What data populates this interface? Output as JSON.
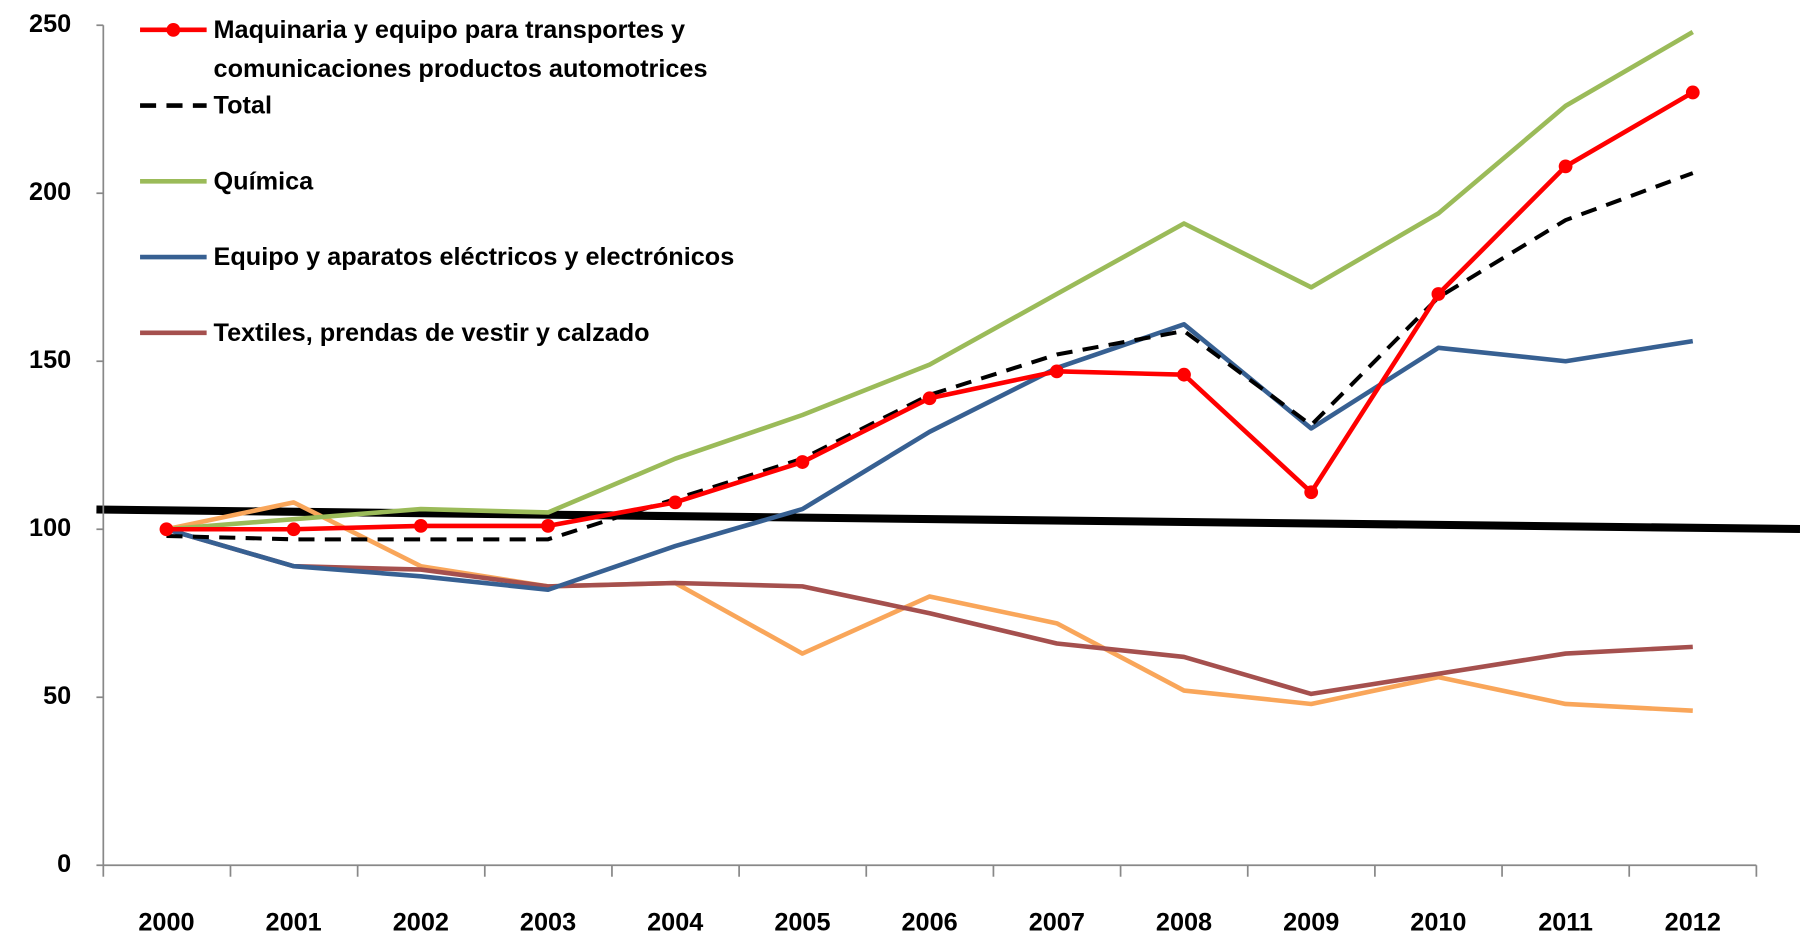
{
  "chart_data": {
    "type": "line",
    "categories": [
      "2000",
      "2001",
      "2002",
      "2003",
      "2004",
      "2005",
      "2006",
      "2007",
      "2008",
      "2009",
      "2010",
      "2011",
      "2012"
    ],
    "series": [
      {
        "name": "Maquinaria y equipo para transportes y comunicaciones productos automotrices",
        "color": "#ff0000",
        "markers": true,
        "values": [
          100,
          100,
          101,
          101,
          108,
          120,
          139,
          147,
          146,
          111,
          170,
          208,
          230
        ]
      },
      {
        "name": "Total",
        "color": "#000000",
        "dashed": true,
        "values": [
          98,
          97,
          97,
          97,
          109,
          121,
          140,
          152,
          159,
          131,
          169,
          192,
          206
        ]
      },
      {
        "name": "Química",
        "color": "#9bbb59",
        "values": [
          100,
          103,
          106,
          105,
          121,
          134,
          149,
          170,
          191,
          172,
          194,
          226,
          248
        ]
      },
      {
        "name": "Equipo y aparatos eléctricos y electrónicos",
        "color": "#376092",
        "values": [
          100,
          89,
          86,
          82,
          95,
          106,
          129,
          148,
          161,
          130,
          154,
          150,
          156
        ]
      },
      {
        "name": "Textiles, prendas de vestir y calzado",
        "color": "#a5504e",
        "values": [
          100,
          89,
          88,
          83,
          84,
          83,
          75,
          66,
          62,
          51,
          57,
          63,
          65
        ]
      },
      {
        "color": "#f9a65a",
        "values": [
          100,
          108,
          89,
          83,
          84,
          63,
          80,
          72,
          52,
          48,
          56,
          48,
          46
        ]
      }
    ],
    "ylim": [
      0,
      250
    ],
    "yticks": [
      0,
      50,
      100,
      150,
      200,
      250
    ],
    "legend": "top-left"
  }
}
